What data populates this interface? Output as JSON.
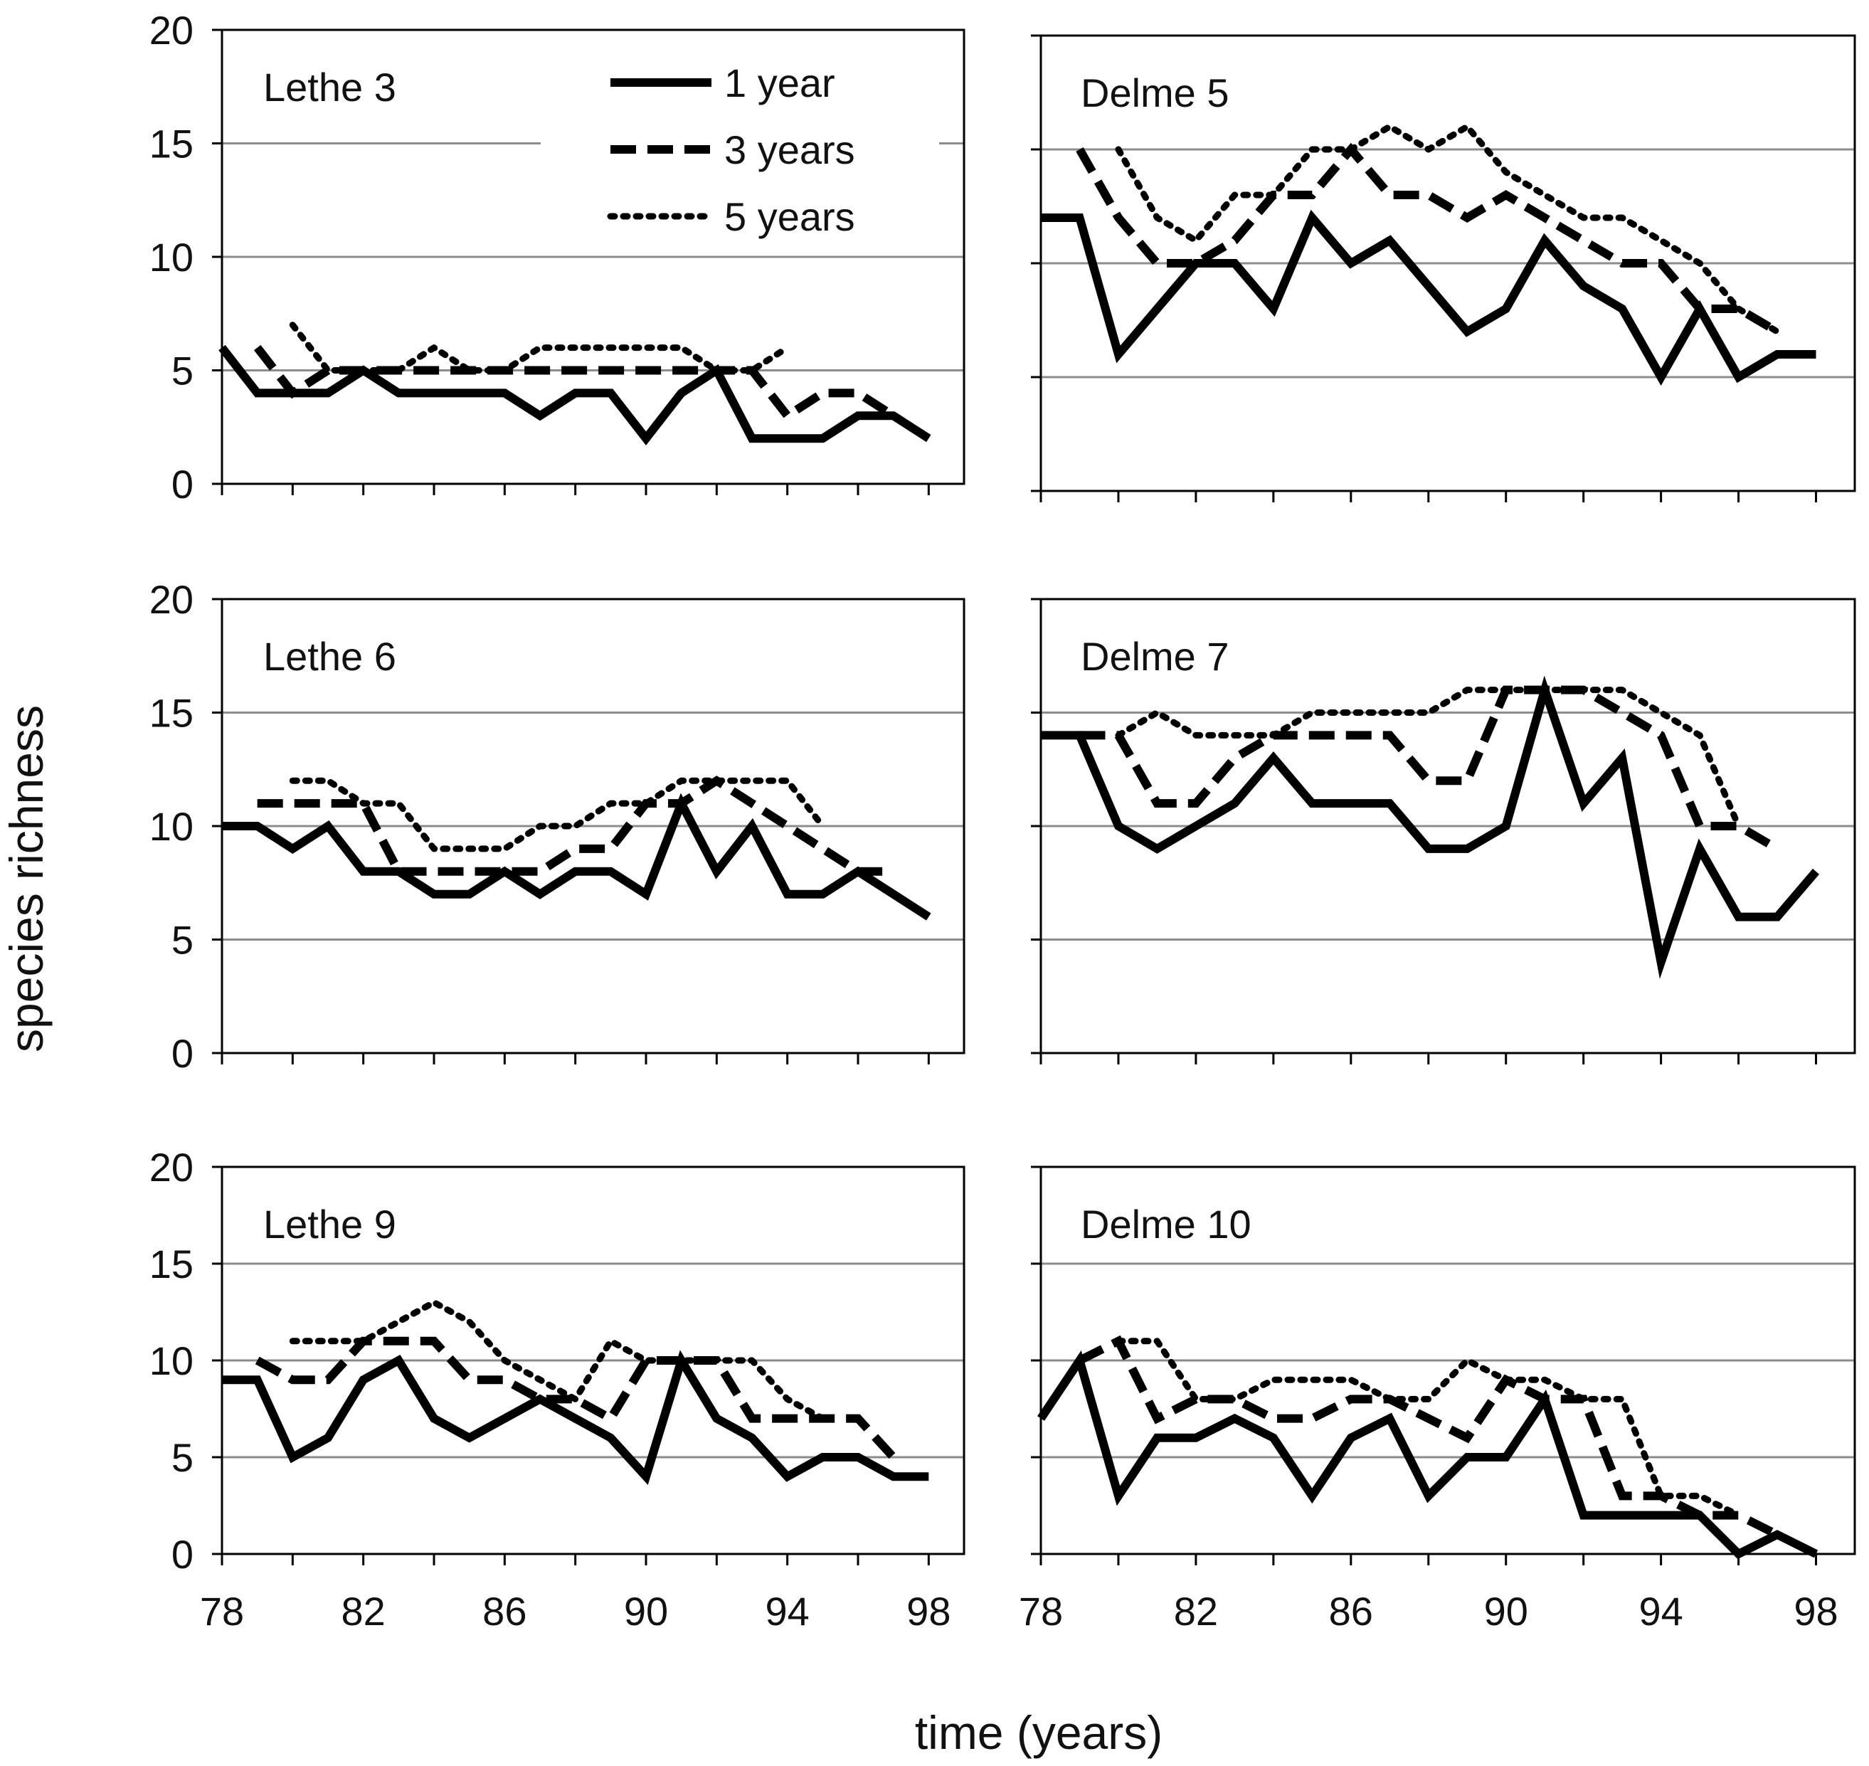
{
  "figure": {
    "ylabel": "species richness",
    "xlabel": "time (years)"
  },
  "legend": [
    {
      "label": "1 year",
      "style": "solid"
    },
    {
      "label": "3 years",
      "style": "dashed"
    },
    {
      "label": "5 years",
      "style": "dotted"
    }
  ],
  "colors": {
    "line": "#000000",
    "grid": "#8c8c8c",
    "frame": "#000000",
    "background": "#ffffff"
  },
  "chart_data": [
    {
      "type": "line",
      "title": "Lethe 3",
      "xlabel": "time (years)",
      "ylabel": "species richness",
      "ylim": [
        0,
        20
      ],
      "xlim": [
        78,
        99
      ],
      "yticks": [
        "0",
        "5",
        "10",
        "15",
        "20"
      ],
      "xticks": [
        "78",
        "82",
        "86",
        "90",
        "94",
        "98"
      ],
      "x": [
        78,
        79,
        80,
        81,
        82,
        83,
        84,
        85,
        86,
        87,
        88,
        89,
        90,
        91,
        92,
        93,
        94,
        95,
        96,
        97,
        98
      ],
      "series": [
        {
          "name": "1 year",
          "values": [
            6,
            4,
            4,
            4,
            5,
            4,
            4,
            4,
            4,
            3,
            4,
            4,
            2,
            4,
            5,
            2,
            2,
            2,
            3,
            3,
            2
          ]
        },
        {
          "name": "3 years",
          "values": [
            null,
            6,
            4,
            5,
            5,
            5,
            5,
            5,
            5,
            5,
            5,
            5,
            5,
            5,
            5,
            5,
            3,
            4,
            4,
            3,
            null
          ]
        },
        {
          "name": "5 years",
          "values": [
            null,
            null,
            7,
            5,
            5,
            5,
            6,
            5,
            5,
            6,
            6,
            6,
            6,
            6,
            5,
            5,
            6,
            null,
            null,
            null,
            null
          ]
        }
      ]
    },
    {
      "type": "line",
      "title": "Delme 5",
      "xlabel": "time (years)",
      "ylabel": "species richness",
      "ylim": [
        0,
        20
      ],
      "xlim": [
        78,
        99
      ],
      "yticks": [],
      "xticks": [
        "78",
        "82",
        "86",
        "90",
        "94",
        "98"
      ],
      "x": [
        78,
        79,
        80,
        81,
        82,
        83,
        84,
        85,
        86,
        87,
        88,
        89,
        90,
        91,
        92,
        93,
        94,
        95,
        96,
        97,
        98
      ],
      "series": [
        {
          "name": "1 year",
          "values": [
            12,
            12,
            6,
            8,
            10,
            10,
            8,
            12,
            10,
            11,
            9,
            7,
            8,
            11,
            9,
            8,
            5,
            8,
            5,
            6,
            6
          ]
        },
        {
          "name": "3 years",
          "values": [
            null,
            15,
            12,
            10,
            10,
            11,
            13,
            13,
            15,
            13,
            13,
            12,
            13,
            12,
            11,
            10,
            10,
            8,
            8,
            7,
            null
          ]
        },
        {
          "name": "5 years",
          "values": [
            null,
            null,
            15,
            12,
            11,
            13,
            13,
            15,
            15,
            16,
            15,
            16,
            14,
            13,
            12,
            12,
            11,
            10,
            8,
            7,
            null
          ]
        }
      ]
    },
    {
      "type": "line",
      "title": "Lethe 6",
      "xlabel": "time (years)",
      "ylabel": "species richness",
      "ylim": [
        0,
        20
      ],
      "xlim": [
        78,
        99
      ],
      "yticks": [
        "0",
        "5",
        "10",
        "15",
        "20"
      ],
      "xticks": [
        "78",
        "82",
        "86",
        "90",
        "94",
        "98"
      ],
      "x": [
        78,
        79,
        80,
        81,
        82,
        83,
        84,
        85,
        86,
        87,
        88,
        89,
        90,
        91,
        92,
        93,
        94,
        95,
        96,
        97,
        98
      ],
      "series": [
        {
          "name": "1 year",
          "values": [
            10,
            10,
            9,
            10,
            8,
            8,
            7,
            7,
            8,
            7,
            8,
            8,
            7,
            11,
            8,
            10,
            7,
            7,
            8,
            7,
            6
          ]
        },
        {
          "name": "3 years",
          "values": [
            null,
            11,
            11,
            11,
            11,
            8,
            8,
            8,
            8,
            8,
            9,
            9,
            11,
            11,
            12,
            11,
            10,
            9,
            8,
            8,
            null
          ]
        },
        {
          "name": "5 years",
          "values": [
            null,
            null,
            12,
            12,
            11,
            11,
            9,
            9,
            9,
            10,
            10,
            11,
            11,
            12,
            12,
            12,
            12,
            10,
            null,
            null,
            null
          ]
        }
      ]
    },
    {
      "type": "line",
      "title": "Delme 7",
      "xlabel": "time (years)",
      "ylabel": "species richness",
      "ylim": [
        0,
        20
      ],
      "xlim": [
        78,
        99
      ],
      "yticks": [],
      "xticks": [
        "78",
        "82",
        "86",
        "90",
        "94",
        "98"
      ],
      "x": [
        78,
        79,
        80,
        81,
        82,
        83,
        84,
        85,
        86,
        87,
        88,
        89,
        90,
        91,
        92,
        93,
        94,
        95,
        96,
        97,
        98
      ],
      "series": [
        {
          "name": "1 year",
          "values": [
            14,
            14,
            10,
            9,
            10,
            11,
            13,
            11,
            11,
            11,
            9,
            9,
            10,
            16,
            11,
            13,
            4,
            9,
            6,
            6,
            8
          ]
        },
        {
          "name": "3 years",
          "values": [
            null,
            14,
            14,
            11,
            11,
            13,
            14,
            14,
            14,
            14,
            12,
            12,
            16,
            16,
            16,
            15,
            14,
            10,
            10,
            9,
            null
          ]
        },
        {
          "name": "5 years",
          "values": [
            null,
            null,
            14,
            15,
            14,
            14,
            14,
            15,
            15,
            15,
            15,
            16,
            16,
            16,
            16,
            16,
            15,
            14,
            10,
            null,
            null
          ]
        }
      ]
    },
    {
      "type": "line",
      "title": "Lethe 9",
      "xlabel": "time (years)",
      "ylabel": "species richness",
      "ylim": [
        0,
        20
      ],
      "xlim": [
        78,
        99
      ],
      "yticks": [
        "0",
        "5",
        "10",
        "15",
        "20"
      ],
      "xticks": [
        "78",
        "82",
        "86",
        "90",
        "94",
        "98"
      ],
      "x": [
        78,
        79,
        80,
        81,
        82,
        83,
        84,
        85,
        86,
        87,
        88,
        89,
        90,
        91,
        92,
        93,
        94,
        95,
        96,
        97,
        98
      ],
      "series": [
        {
          "name": "1 year",
          "values": [
            9,
            9,
            5,
            6,
            9,
            10,
            7,
            6,
            7,
            8,
            7,
            6,
            4,
            10,
            7,
            6,
            4,
            5,
            5,
            4,
            4
          ]
        },
        {
          "name": "3 years",
          "values": [
            null,
            10,
            9,
            9,
            11,
            11,
            11,
            9,
            9,
            8,
            8,
            7,
            10,
            10,
            10,
            7,
            7,
            7,
            7,
            5,
            null
          ]
        },
        {
          "name": "5 years",
          "values": [
            null,
            null,
            11,
            11,
            11,
            12,
            13,
            12,
            10,
            9,
            8,
            11,
            10,
            10,
            10,
            10,
            8,
            7,
            null,
            null,
            null
          ]
        }
      ]
    },
    {
      "type": "line",
      "title": "Delme 10",
      "xlabel": "time (years)",
      "ylabel": "species richness",
      "ylim": [
        0,
        20
      ],
      "xlim": [
        78,
        99
      ],
      "yticks": [],
      "xticks": [
        "78",
        "82",
        "86",
        "90",
        "94",
        "98"
      ],
      "x": [
        78,
        79,
        80,
        81,
        82,
        83,
        84,
        85,
        86,
        87,
        88,
        89,
        90,
        91,
        92,
        93,
        94,
        95,
        96,
        97,
        98
      ],
      "series": [
        {
          "name": "1 year",
          "values": [
            7,
            10,
            3,
            6,
            6,
            7,
            6,
            3,
            6,
            7,
            3,
            5,
            5,
            8,
            2,
            2,
            2,
            2,
            0,
            1,
            0
          ]
        },
        {
          "name": "3 years",
          "values": [
            null,
            10,
            11,
            7,
            8,
            8,
            7,
            7,
            8,
            8,
            7,
            6,
            9,
            8,
            8,
            3,
            3,
            2,
            2,
            1,
            null
          ]
        },
        {
          "name": "5 years",
          "values": [
            null,
            null,
            11,
            11,
            8,
            8,
            9,
            9,
            9,
            8,
            8,
            10,
            9,
            9,
            8,
            8,
            3,
            3,
            2,
            null,
            null
          ]
        }
      ]
    }
  ]
}
